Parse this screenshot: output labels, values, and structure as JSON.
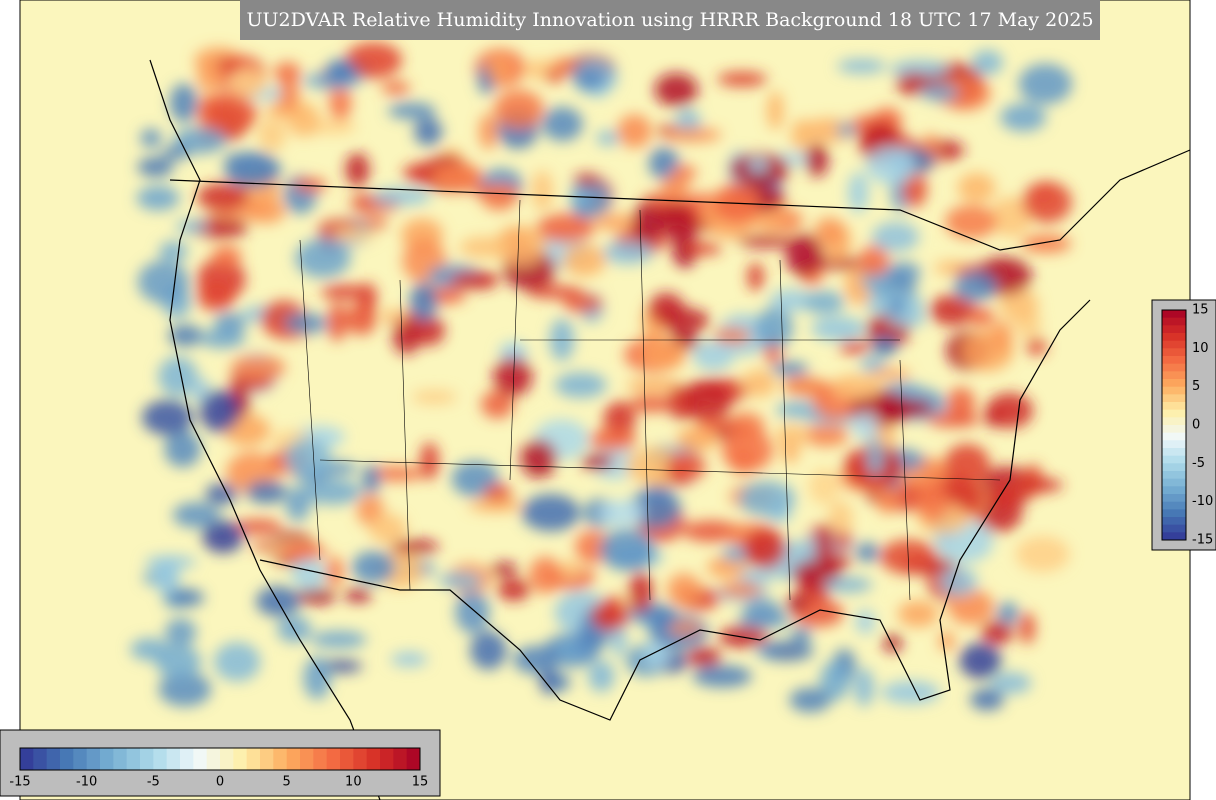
{
  "header": {
    "title": "UU2DVAR Relative Humidity Innovation using HRRR Background 18 UTC 17 May 2025"
  },
  "colorbar_right": {
    "ticks": [
      15,
      10,
      5,
      0,
      -5,
      -10,
      -15
    ]
  },
  "colorbar_bottom": {
    "ticks": [
      -15,
      -10,
      -5,
      0,
      5,
      10,
      15
    ]
  }
}
